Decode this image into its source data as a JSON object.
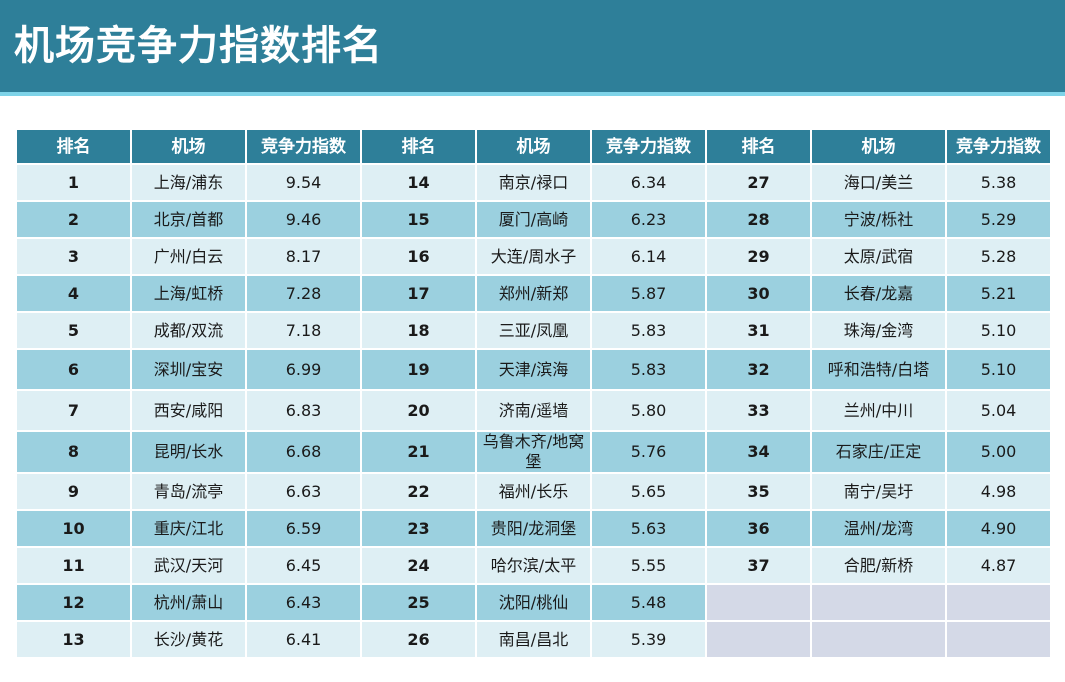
{
  "title": "机场竞争力指数排名",
  "headers": [
    "排名",
    "机场",
    "竞争力指数",
    "排名",
    "机场",
    "竞争力指数",
    "排名",
    "机场",
    "竞争力指数"
  ],
  "rows": [
    [
      [
        "1",
        "上海/浦东",
        "9.54"
      ],
      [
        "14",
        "南京/禄口",
        "6.34"
      ],
      [
        "27",
        "海口/美兰",
        "5.38"
      ]
    ],
    [
      [
        "2",
        "北京/首都",
        "9.46"
      ],
      [
        "15",
        "厦门/高崎",
        "6.23"
      ],
      [
        "28",
        "宁波/栎社",
        "5.29"
      ]
    ],
    [
      [
        "3",
        "广州/白云",
        "8.17"
      ],
      [
        "16",
        "大连/周水子",
        "6.14"
      ],
      [
        "29",
        "太原/武宿",
        "5.28"
      ]
    ],
    [
      [
        "4",
        "上海/虹桥",
        "7.28"
      ],
      [
        "17",
        "郑州/新郑",
        "5.87"
      ],
      [
        "30",
        "长春/龙嘉",
        "5.21"
      ]
    ],
    [
      [
        "5",
        "成都/双流",
        "7.18"
      ],
      [
        "18",
        "三亚/凤凰",
        "5.83"
      ],
      [
        "31",
        "珠海/金湾",
        "5.10"
      ]
    ],
    [
      [
        "6",
        "深圳/宝安",
        "6.99"
      ],
      [
        "19",
        "天津/滨海",
        "5.83"
      ],
      [
        "32",
        "呼和浩特/白塔",
        "5.10"
      ]
    ],
    [
      [
        "7",
        "西安/咸阳",
        "6.83"
      ],
      [
        "20",
        "济南/遥墙",
        "5.80"
      ],
      [
        "33",
        "兰州/中川",
        "5.04"
      ]
    ],
    [
      [
        "8",
        "昆明/长水",
        "6.68"
      ],
      [
        "21",
        "乌鲁木齐/地窝堡",
        "5.76"
      ],
      [
        "34",
        "石家庄/正定",
        "5.00"
      ]
    ],
    [
      [
        "9",
        "青岛/流亭",
        "6.63"
      ],
      [
        "22",
        "福州/长乐",
        "5.65"
      ],
      [
        "35",
        "南宁/吴圩",
        "4.98"
      ]
    ],
    [
      [
        "10",
        "重庆/江北",
        "6.59"
      ],
      [
        "23",
        "贵阳/龙洞堡",
        "5.63"
      ],
      [
        "36",
        "温州/龙湾",
        "4.90"
      ]
    ],
    [
      [
        "11",
        "武汉/天河",
        "6.45"
      ],
      [
        "24",
        "哈尔滨/太平",
        "5.55"
      ],
      [
        "37",
        "合肥/新桥",
        "4.87"
      ]
    ],
    [
      [
        "12",
        "杭州/萧山",
        "6.43"
      ],
      [
        "25",
        "沈阳/桃仙",
        "5.48"
      ],
      [
        "",
        "",
        ""
      ]
    ],
    [
      [
        "13",
        "长沙/黄花",
        "6.41"
      ],
      [
        "26",
        "南昌/昌北",
        "5.39"
      ],
      [
        "",
        "",
        ""
      ]
    ]
  ]
}
